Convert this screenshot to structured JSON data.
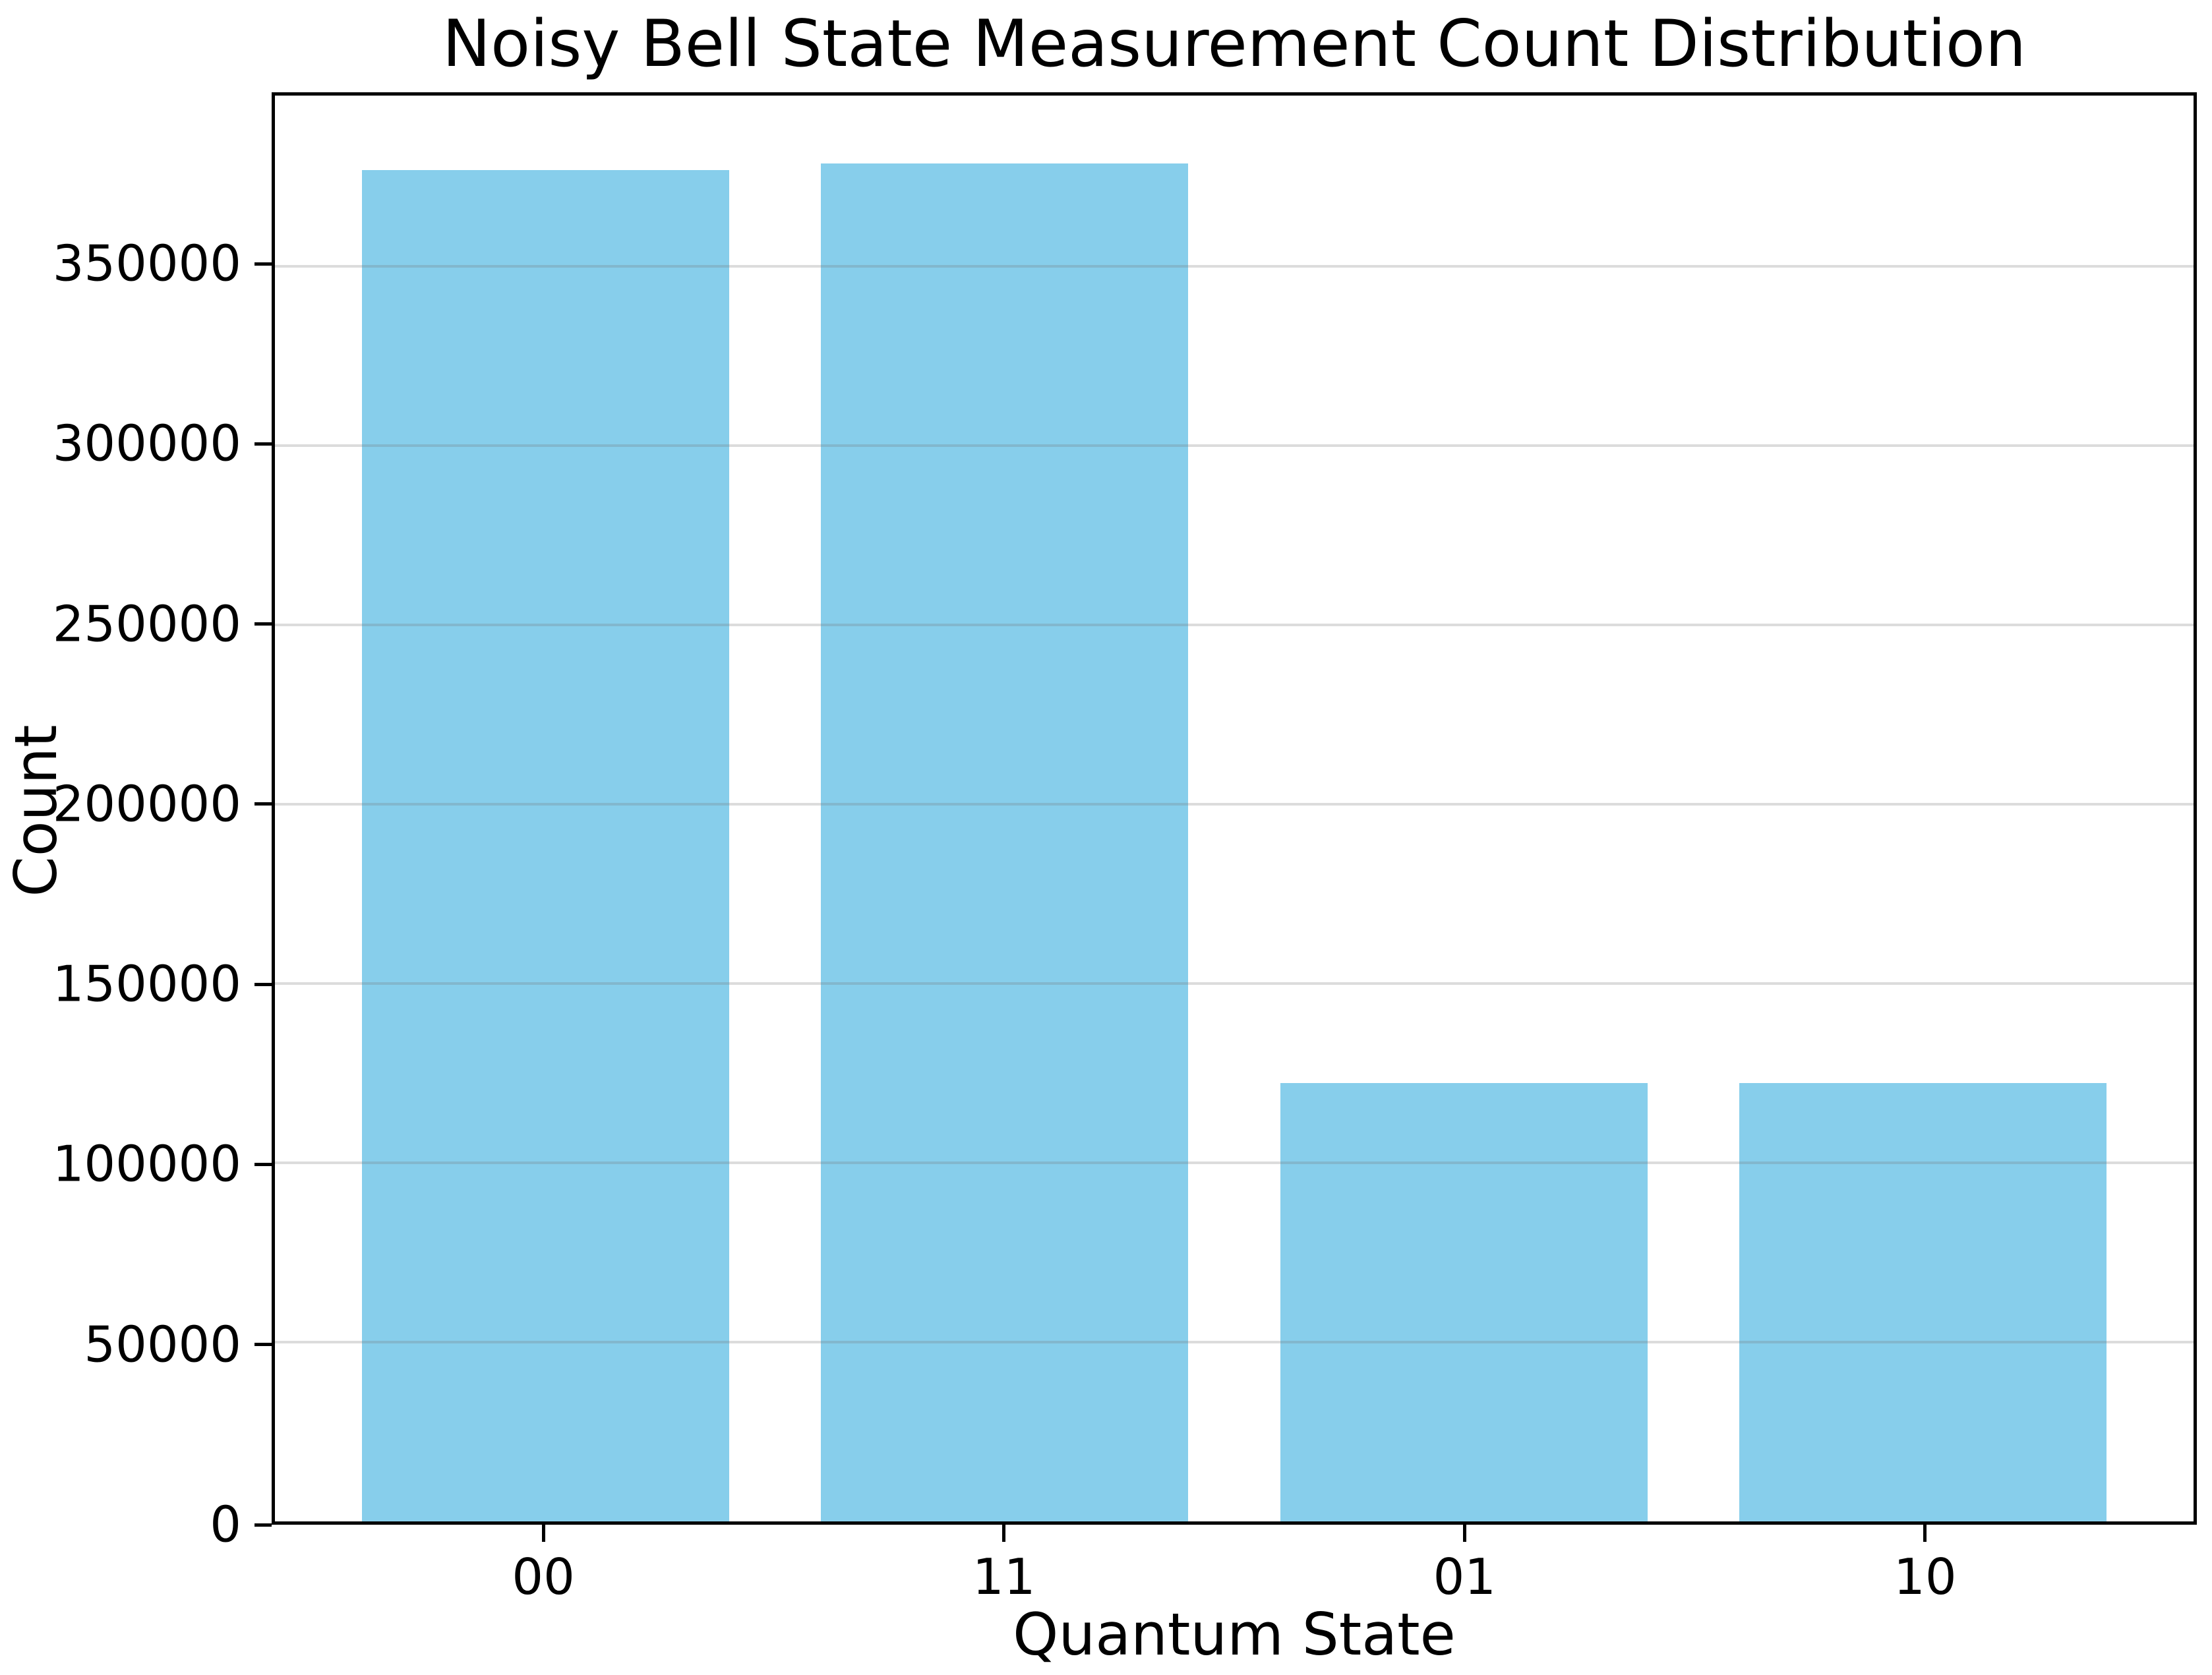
{
  "chart_data": {
    "type": "bar",
    "title": "Noisy Bell State Measurement Count Distribution",
    "xlabel": "Quantum State",
    "ylabel": "Count",
    "categories": [
      "00",
      "11",
      "01",
      "10"
    ],
    "values": [
      376900,
      378700,
      122200,
      122200
    ],
    "yticks": [
      0,
      50000,
      100000,
      150000,
      200000,
      250000,
      300000,
      350000
    ],
    "ylim": [
      0,
      397600
    ],
    "xlim": [
      -0.59,
      3.59
    ],
    "bar_width": 0.8,
    "grid": "horizontal gridlines, light gray, drawn above bars",
    "legend_position": "none",
    "bar_color": "#87CEEB"
  },
  "colors": {
    "bar": "#87CEEB",
    "background": "#ffffff",
    "gridline": "rgba(115,115,115,0.25)",
    "axis": "#000000",
    "text": "#000000"
  }
}
